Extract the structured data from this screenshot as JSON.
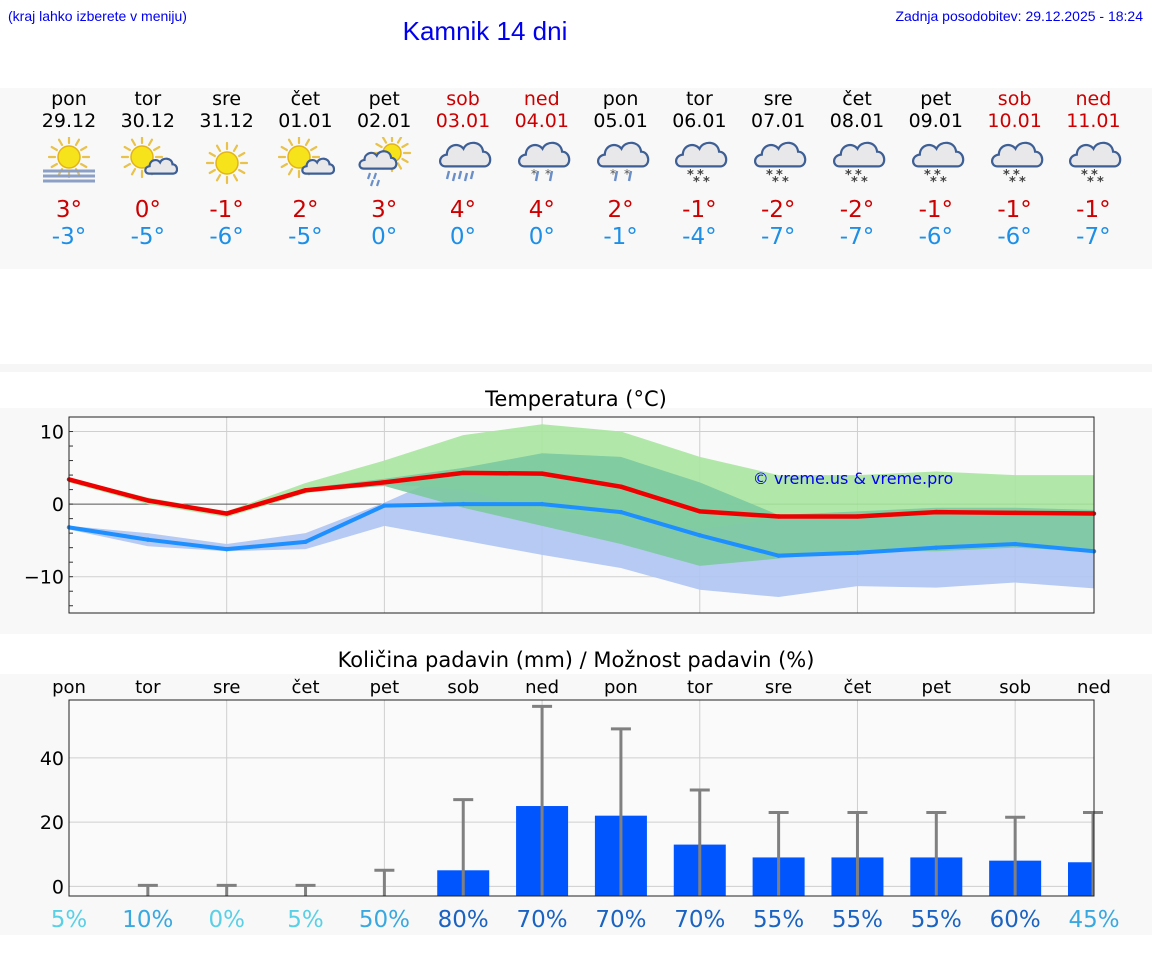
{
  "header": {
    "menu_hint": "(kraj lahko izberete v meniju)",
    "title": "Kamnik 14 dni",
    "updated": "Zadnja posodobitev: 29.12.2025 - 18:24"
  },
  "days": [
    {
      "name": "pon",
      "date": "29.12",
      "weekend": false,
      "icon": "sun-fog-icon",
      "tmax": "3°",
      "tmin": "-3°"
    },
    {
      "name": "tor",
      "date": "30.12",
      "weekend": false,
      "icon": "sun-small-cloud-icon",
      "tmax": "0°",
      "tmin": "-5°"
    },
    {
      "name": "sre",
      "date": "31.12",
      "weekend": false,
      "icon": "sun-icon",
      "tmax": "-1°",
      "tmin": "-6°"
    },
    {
      "name": "čet",
      "date": "01.01",
      "weekend": false,
      "icon": "sun-small-cloud-icon",
      "tmax": "2°",
      "tmin": "-5°"
    },
    {
      "name": "pet",
      "date": "02.01",
      "weekend": false,
      "icon": "sun-cloud-rain-icon",
      "tmax": "3°",
      "tmin": "0°"
    },
    {
      "name": "sob",
      "date": "03.01",
      "weekend": true,
      "icon": "cloud-rain-icon",
      "tmax": "4°",
      "tmin": "0°"
    },
    {
      "name": "ned",
      "date": "04.01",
      "weekend": true,
      "icon": "cloud-sleet-icon",
      "tmax": "4°",
      "tmin": "0°"
    },
    {
      "name": "pon",
      "date": "05.01",
      "weekend": false,
      "icon": "cloud-sleet-icon",
      "tmax": "2°",
      "tmin": "-1°"
    },
    {
      "name": "tor",
      "date": "06.01",
      "weekend": false,
      "icon": "cloud-snow-icon",
      "tmax": "-1°",
      "tmin": "-4°"
    },
    {
      "name": "sre",
      "date": "07.01",
      "weekend": false,
      "icon": "cloud-snow-icon",
      "tmax": "-2°",
      "tmin": "-7°"
    },
    {
      "name": "čet",
      "date": "08.01",
      "weekend": false,
      "icon": "cloud-snow-icon",
      "tmax": "-2°",
      "tmin": "-7°"
    },
    {
      "name": "pet",
      "date": "09.01",
      "weekend": false,
      "icon": "cloud-snow-icon",
      "tmax": "-1°",
      "tmin": "-6°"
    },
    {
      "name": "sob",
      "date": "10.01",
      "weekend": true,
      "icon": "cloud-snow-icon",
      "tmax": "-1°",
      "tmin": "-6°"
    },
    {
      "name": "ned",
      "date": "11.01",
      "weekend": true,
      "icon": "cloud-snow-icon",
      "tmax": "-1°",
      "tmin": "-7°"
    }
  ],
  "colors": {
    "max_line": "#ee0000",
    "min_line": "#1e8fff",
    "green_outer": "#a8e6a0",
    "green_inner": "#7cc9a0",
    "blue_band": "#aec4f2",
    "bar": "#0055ff",
    "whisker": "#808080",
    "weekend": "#cc0000",
    "link": "#0000ee"
  },
  "chart_data": [
    {
      "type": "line",
      "title": "Temperatura (°C)",
      "watermark": "© vreme.us & vreme.pro",
      "ylim": [
        -15,
        12
      ],
      "yticks": [
        "10",
        "0",
        "−10"
      ],
      "ytick_values": [
        10,
        0,
        -10
      ],
      "x": [
        0,
        1,
        2,
        3,
        4,
        5,
        6,
        7,
        8,
        9,
        10,
        11,
        12,
        13
      ],
      "series": [
        {
          "name": "max",
          "values": [
            3.4,
            0.5,
            -1.3,
            1.9,
            3.0,
            4.3,
            4.2,
            2.4,
            -1.0,
            -1.7,
            -1.7,
            -1.1,
            -1.2,
            -1.3
          ]
        },
        {
          "name": "min",
          "values": [
            -3.2,
            -4.9,
            -6.2,
            -5.2,
            -0.2,
            0.0,
            0.0,
            -1.1,
            -4.3,
            -7.1,
            -6.7,
            -6.0,
            -5.5,
            -6.5
          ]
        }
      ],
      "bands": [
        {
          "name": "max_range_outer",
          "upper": [
            3.6,
            0.9,
            -1.0,
            2.9,
            6.0,
            9.5,
            11.0,
            10.0,
            6.5,
            4.0,
            4.0,
            4.5,
            4.0,
            4.0
          ],
          "lower": [
            3.0,
            0.0,
            -1.8,
            1.5,
            2.8,
            2.0,
            -1.0,
            -2.0,
            -3.5,
            -2.0,
            -1.5,
            -1.5,
            -1.5,
            -1.8
          ]
        },
        {
          "name": "max_range_inner",
          "upper": [
            3.5,
            0.7,
            -1.2,
            2.2,
            3.5,
            5.0,
            7.0,
            6.5,
            3.0,
            -1.5,
            -1.0,
            -0.5,
            -0.5,
            -0.8
          ],
          "lower": [
            3.2,
            0.3,
            -1.5,
            1.7,
            2.5,
            -0.5,
            -3.0,
            -5.5,
            -8.5,
            -7.5,
            -6.5,
            -6.5,
            -6.0,
            -6.5
          ]
        },
        {
          "name": "min_range",
          "upper": [
            -3.0,
            -4.0,
            -5.5,
            -4.0,
            0.2,
            5.0,
            4.5,
            3.5,
            1.0,
            -2.0,
            -2.0,
            -1.5,
            -1.0,
            -1.5
          ],
          "lower": [
            -3.5,
            -5.8,
            -6.5,
            -6.2,
            -3.0,
            -5.0,
            -7.0,
            -8.8,
            -11.8,
            -12.8,
            -11.3,
            -11.5,
            -10.8,
            -11.6
          ]
        }
      ]
    },
    {
      "type": "bar",
      "title": "Količina padavin (mm) / Možnost padavin (%)",
      "categories": [
        "pon",
        "tor",
        "sre",
        "čet",
        "pet",
        "sob",
        "ned",
        "pon",
        "tor",
        "sre",
        "čet",
        "pet",
        "sob",
        "ned"
      ],
      "values": [
        0,
        0,
        0,
        0,
        0,
        5,
        25,
        22,
        13,
        9,
        9,
        9,
        8,
        7.5
      ],
      "whisker_max": [
        0,
        0.3,
        0.3,
        0.3,
        5,
        27,
        56,
        49,
        30,
        23,
        23,
        23,
        21.5,
        23
      ],
      "ylim": [
        -3,
        58
      ],
      "yticks": [
        "40",
        "20",
        "0"
      ],
      "ytick_values": [
        40,
        20,
        0
      ],
      "probability": [
        "5%",
        "10%",
        "0%",
        "5%",
        "50%",
        "80%",
        "70%",
        "70%",
        "70%",
        "55%",
        "55%",
        "55%",
        "60%",
        "45%"
      ],
      "probability_colors": [
        "#5ad0e6",
        "#3aa8e0",
        "#5ad0e6",
        "#5ad0e6",
        "#3aa8e0",
        "#1a63c2",
        "#1a63c2",
        "#1a63c2",
        "#1a63c2",
        "#1a63c2",
        "#1a63c2",
        "#1a63c2",
        "#1a63c2",
        "#3aa8e0"
      ]
    }
  ]
}
